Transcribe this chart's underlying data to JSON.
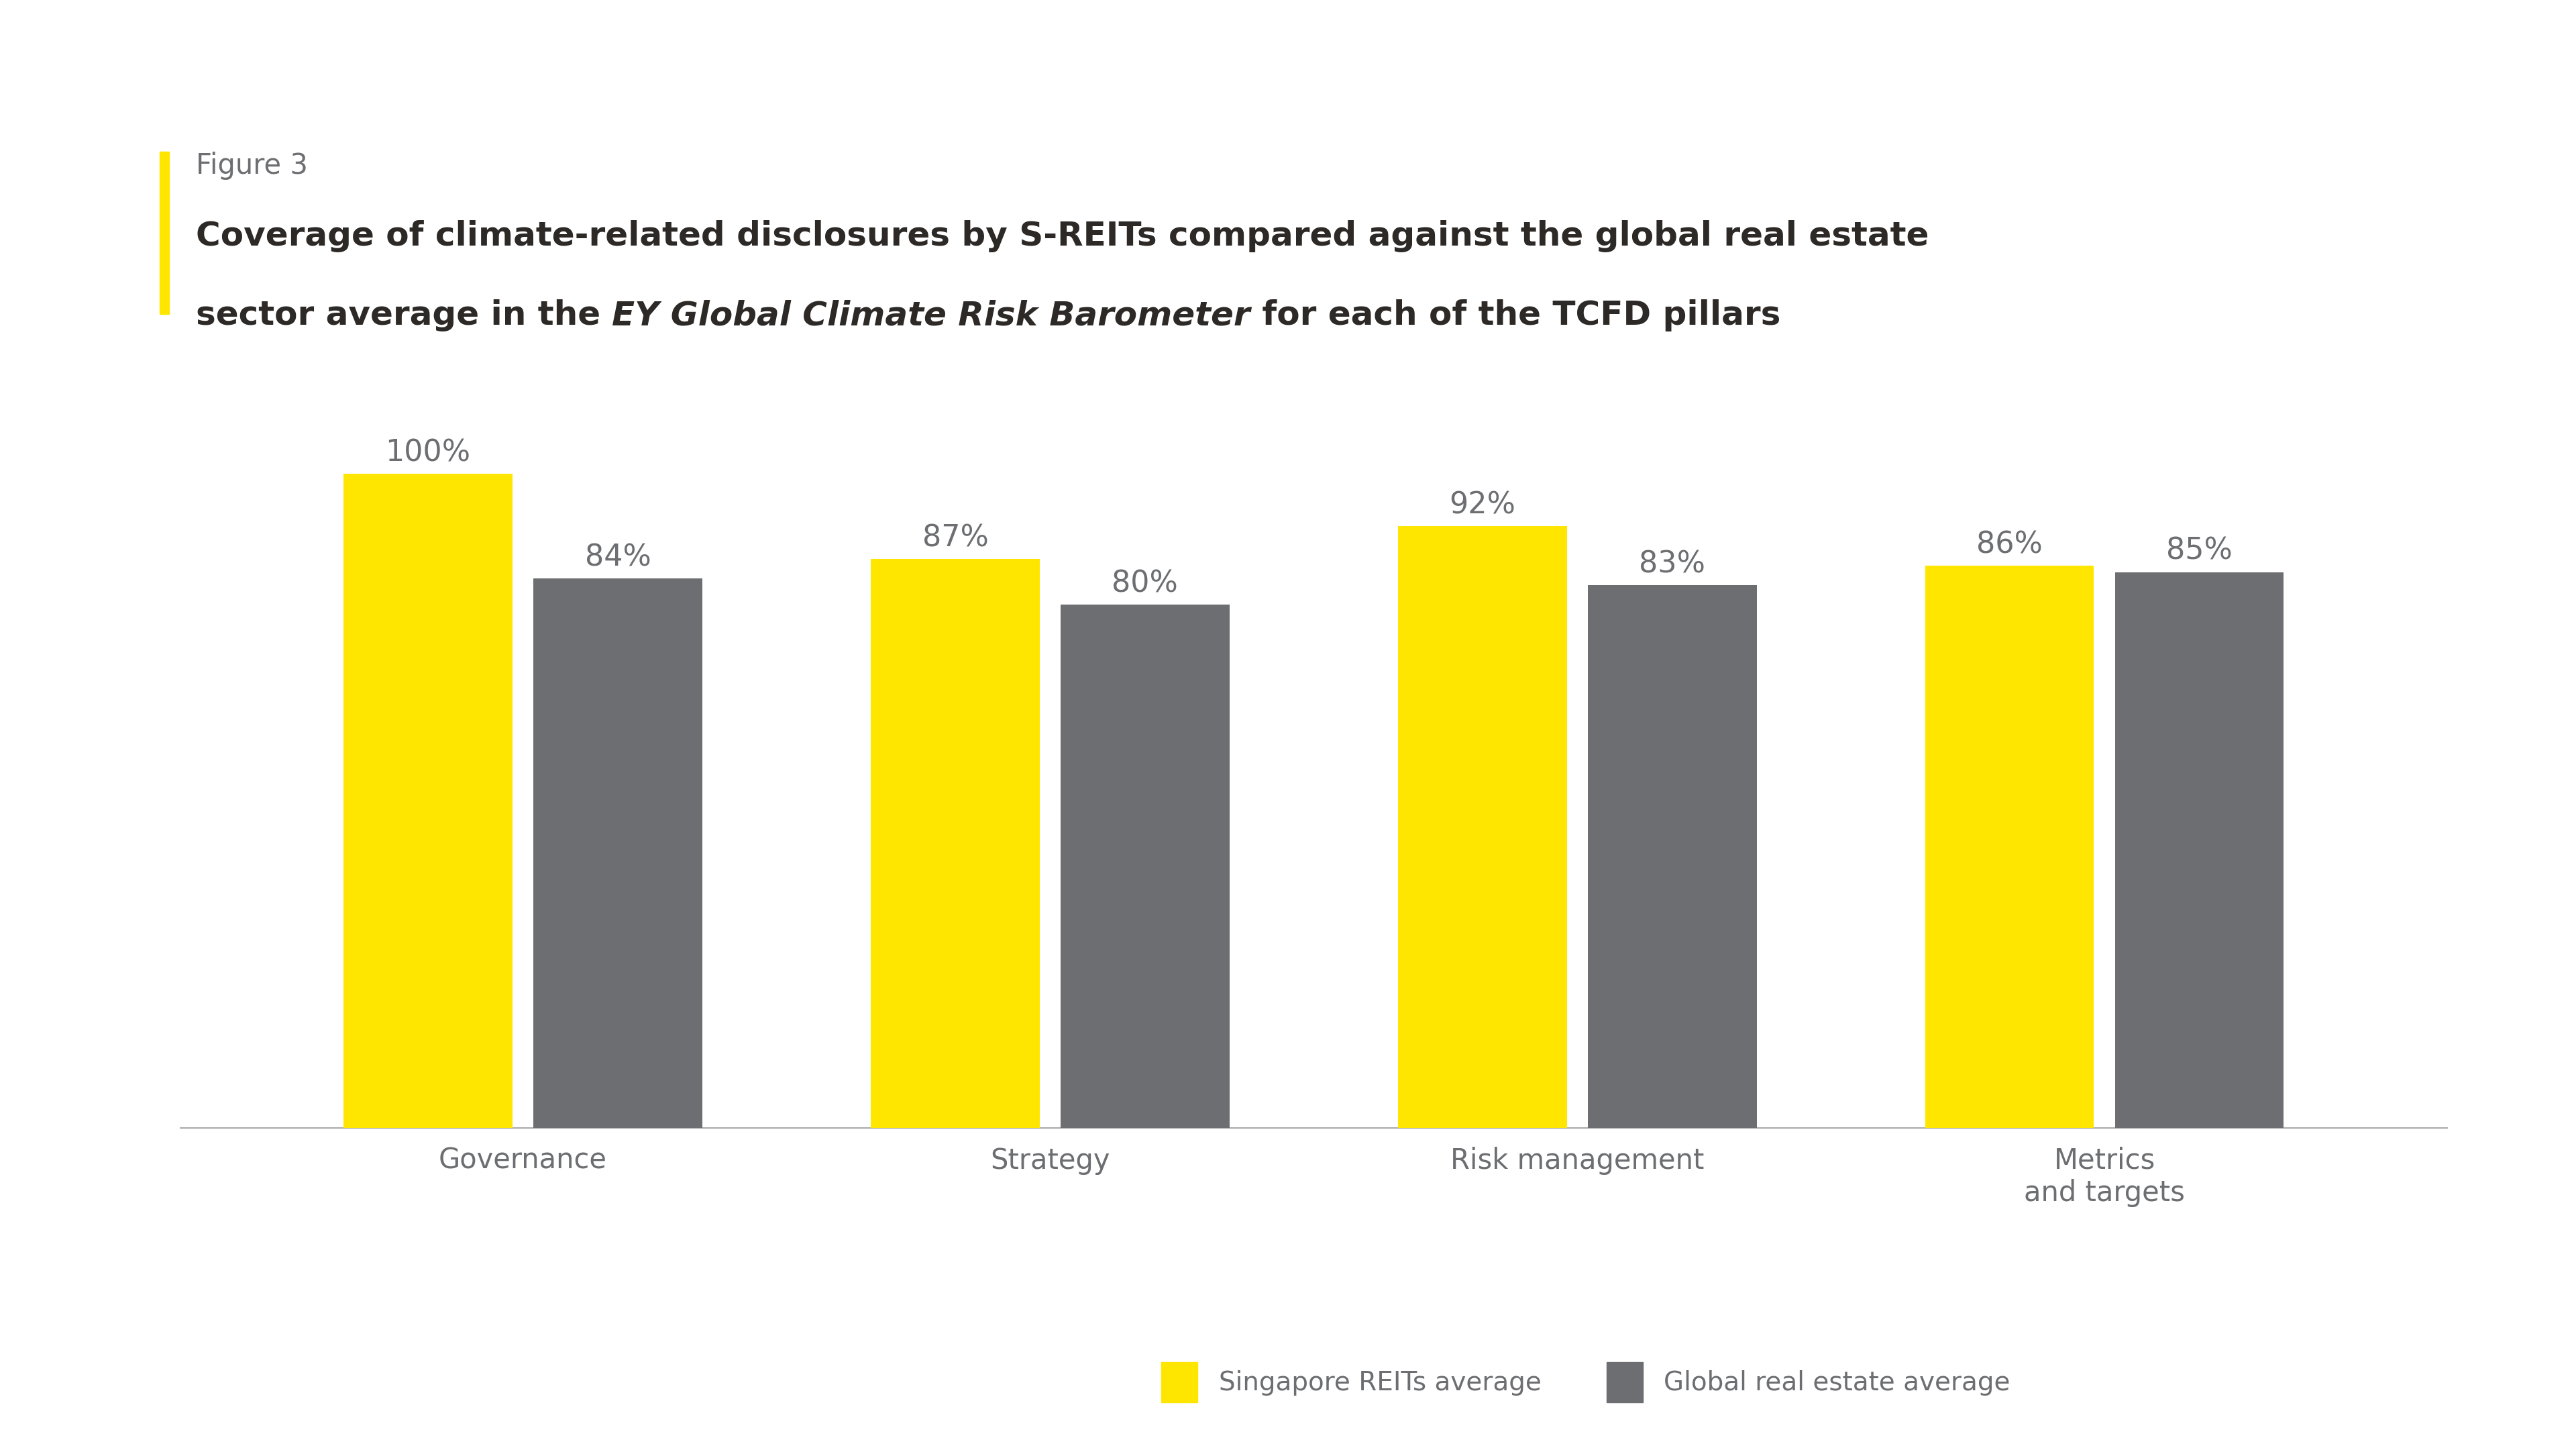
{
  "figure_label": "Figure 3",
  "title_line1": "Coverage of climate-related disclosures by S-REITs compared against the global real estate",
  "title_line2_part1": "sector average in the ",
  "title_line2_italic": "EY Global Climate Risk Barometer",
  "title_line2_part3": " for each of the TCFD pillars",
  "categories": [
    "Governance",
    "Strategy",
    "Risk management",
    "Metrics\nand targets"
  ],
  "singapore_values": [
    100,
    87,
    92,
    86
  ],
  "global_values": [
    84,
    80,
    83,
    85
  ],
  "singapore_color": "#FFE600",
  "global_color": "#6D6E71",
  "bar_width": 0.32,
  "background_color": "#FFFFFF",
  "text_color": "#6D6E71",
  "title_color": "#2D2926",
  "figure_label_color": "#6D6E71",
  "accent_bar_color": "#FFE600",
  "ylim": [
    0,
    115
  ],
  "legend_singapore": "Singapore REITs average",
  "legend_global": "Global real estate average",
  "tick_fontsize": 30,
  "title_fontsize": 36,
  "figure_label_fontsize": 30,
  "legend_fontsize": 28,
  "value_fontsize": 32
}
